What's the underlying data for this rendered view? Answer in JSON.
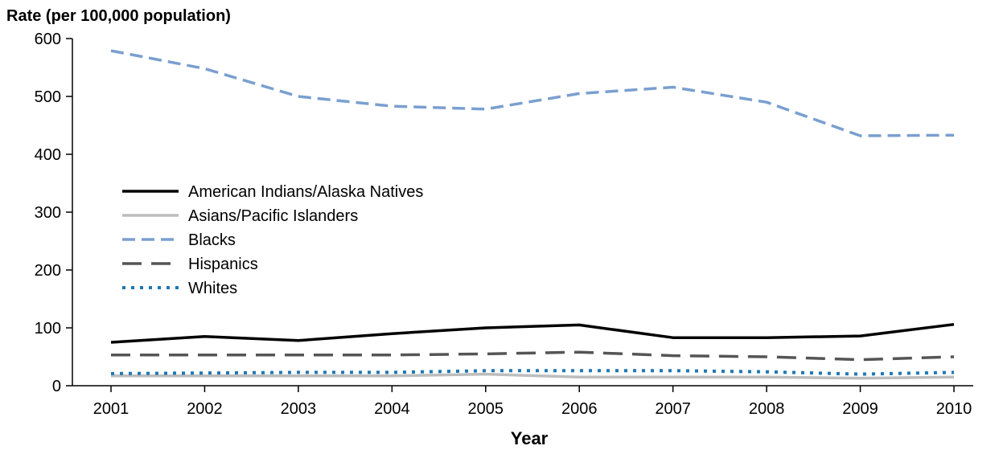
{
  "chart_data": {
    "type": "line",
    "ylabel": "Rate (per 100,000 population)",
    "xlabel": "Year",
    "ylim": [
      0,
      600
    ],
    "yticks": [
      0,
      100,
      200,
      300,
      400,
      500,
      600
    ],
    "categories": [
      "2001",
      "2002",
      "2003",
      "2004",
      "2005",
      "2006",
      "2007",
      "2008",
      "2009",
      "2010"
    ],
    "grid": false,
    "legend_position": "center-left",
    "series": [
      {
        "name": "American Indians/Alaska Natives",
        "color": "#000000",
        "style": "solid",
        "values": [
          75,
          85,
          78,
          90,
          100,
          105,
          83,
          83,
          86,
          106
        ]
      },
      {
        "name": "Asians/Pacific Islanders",
        "color": "#bdbdbd",
        "style": "solid",
        "values": [
          17,
          17,
          17,
          17,
          20,
          15,
          15,
          15,
          13,
          15
        ]
      },
      {
        "name": "Blacks",
        "color": "#7a9fd0",
        "style": "dashed",
        "values": [
          579,
          548,
          500,
          483,
          478,
          505,
          516,
          490,
          432,
          433
        ]
      },
      {
        "name": "Hispanics",
        "color": "#555555",
        "style": "longdash",
        "values": [
          53,
          53,
          53,
          53,
          55,
          58,
          52,
          50,
          45,
          50
        ]
      },
      {
        "name": "Whites",
        "color": "#1f77b4",
        "style": "dotted",
        "values": [
          21,
          22,
          23,
          23,
          26,
          26,
          26,
          24,
          20,
          23
        ]
      }
    ]
  }
}
